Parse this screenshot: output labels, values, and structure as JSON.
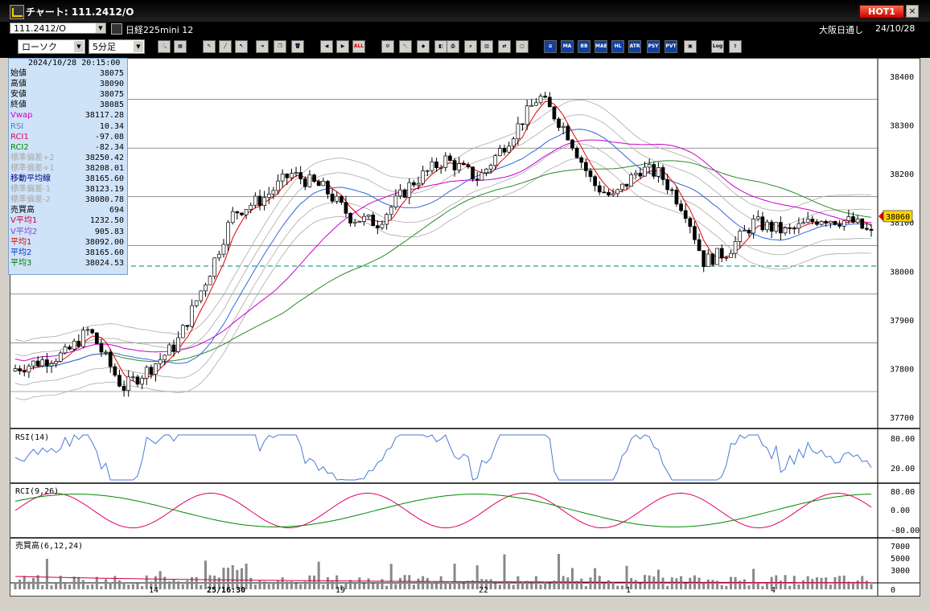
{
  "window": {
    "title": "チャート: 111.2412/O",
    "hot_label": "HOT1",
    "close_glyph": "×"
  },
  "toolbar_top": {
    "symbol_value": "111.2412/O",
    "instrument_name": "日経225mini 12",
    "exchange_label": "大阪日通し",
    "date_label": "24/10/28"
  },
  "toolbar_main": {
    "chart_type_value": "ローソク",
    "interval_value": "5分足",
    "indicator_buttons": [
      "MA",
      "BB",
      "MAE",
      "HL",
      "ATR",
      "PSY",
      "PVT"
    ],
    "log_label": "Log",
    "all_label": "ALL"
  },
  "info_panel": {
    "datetime": "2024/10/28  20:15:00",
    "rows": [
      {
        "label": "始値",
        "value": "38075",
        "color": "#000000"
      },
      {
        "label": "高値",
        "value": "38090",
        "color": "#000000"
      },
      {
        "label": "安値",
        "value": "38075",
        "color": "#000000"
      },
      {
        "label": "終値",
        "value": "38085",
        "color": "#000000"
      },
      {
        "label": "Vwap",
        "value": "38117.28",
        "color": "#cc00cc"
      },
      {
        "label": "RSI",
        "value": "10.34",
        "color": "#4a7ad8"
      },
      {
        "label": "RCI1",
        "value": "-97.08",
        "color": "#e0006a"
      },
      {
        "label": "RCI2",
        "value": "-82.34",
        "color": "#008800"
      },
      {
        "label": "標準偏差+2",
        "value": "38250.42",
        "color": "#a8a8a8"
      },
      {
        "label": "標準偏差+1",
        "value": "38208.01",
        "color": "#a8a8a8"
      },
      {
        "label": "移動平均線",
        "value": "38165.60",
        "color": "#000080"
      },
      {
        "label": "標準偏差-1",
        "value": "38123.19",
        "color": "#a8a8a8"
      },
      {
        "label": "標準偏差-2",
        "value": "38080.78",
        "color": "#a8a8a8"
      },
      {
        "label": "売買高",
        "value": "694",
        "color": "#000000"
      },
      {
        "label": "V平均1",
        "value": "1232.50",
        "color": "#cc0044"
      },
      {
        "label": "V平均2",
        "value": "905.83",
        "color": "#8844cc"
      },
      {
        "label": "平均1",
        "value": "38092.00",
        "color": "#dd0000"
      },
      {
        "label": "平均2",
        "value": "38165.60",
        "color": "#0033cc"
      },
      {
        "label": "平均3",
        "value": "38024.53",
        "color": "#007700"
      }
    ]
  },
  "price_panel": {
    "y_ticks": [
      "38400",
      "38300",
      "38200",
      "38100",
      "38000",
      "37900",
      "37800",
      "37700"
    ],
    "current_price": "38060",
    "colors": {
      "up": "#ffffff",
      "down": "#000000",
      "ma1": "#dd0000",
      "ma2": "#3366dd",
      "ma3": "#2a8a2a",
      "vwap": "#cc00cc",
      "band": "#aaaaaa",
      "dash": "#008080"
    }
  },
  "rsi_panel": {
    "label": "RSI(14)",
    "y_ticks": [
      "80.00",
      "20.00"
    ],
    "color": "#4a7ad8"
  },
  "rci_panel": {
    "label": "RCI(9,26)",
    "y_ticks": [
      "80.00",
      "0.00",
      "-80.00"
    ],
    "colors": {
      "rci1": "#e0006a",
      "rci2": "#008800"
    }
  },
  "volume_panel": {
    "label": "売買高(6,12,24)",
    "y_ticks": [
      "7000",
      "5000",
      "3000",
      "0"
    ]
  },
  "x_axis": {
    "labels": [
      "14",
      "25/16:30",
      "19",
      "22",
      "1",
      "4"
    ]
  }
}
